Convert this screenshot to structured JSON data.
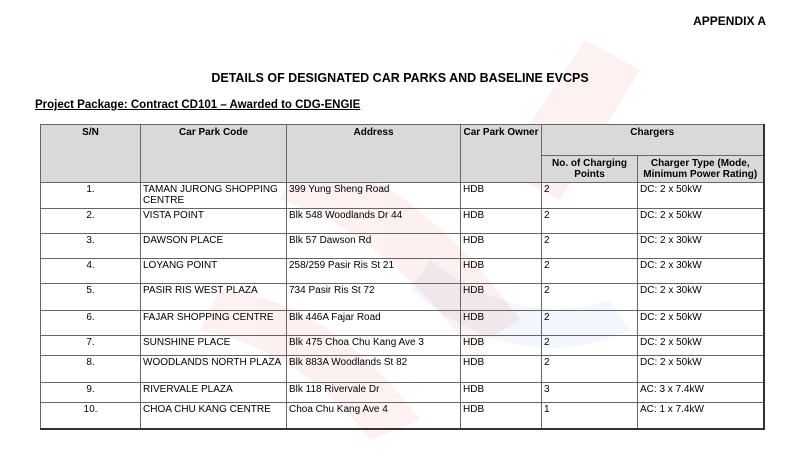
{
  "appendix": "APPENDIX A",
  "title": "DETAILS OF DESIGNATED CAR PARKS AND BASELINE EVCPS",
  "package": "Project Package: Contract CD101 – Awarded to CDG-ENGIE",
  "headers": {
    "sn": "S/N",
    "code": "Car Park Code",
    "address": "Address",
    "owner": "Car Park Owner",
    "chargers": "Chargers",
    "num": "No. of Charging Points",
    "type": "Charger Type (Mode, Minimum Power Rating)"
  },
  "rows": [
    {
      "sn": "1.",
      "code": "TAMAN JURONG SHOPPING CENTRE",
      "address": "399 Yung Sheng Road",
      "owner": "HDB",
      "num": "2",
      "type": "DC: 2 x 50kW"
    },
    {
      "sn": "2.",
      "code": "VISTA POINT",
      "address": "Blk 548 Woodlands Dr 44",
      "owner": "HDB",
      "num": "2",
      "type": "DC: 2 x 50kW"
    },
    {
      "sn": "3.",
      "code": "DAWSON PLACE",
      "address": "Blk 57 Dawson Rd",
      "owner": "HDB",
      "num": "2",
      "type": "DC: 2 x 30kW"
    },
    {
      "sn": "4.",
      "code": "LOYANG POINT",
      "address": "258/259 Pasir Ris St 21",
      "owner": "HDB",
      "num": "2",
      "type": "DC: 2 x 30kW"
    },
    {
      "sn": "5.",
      "code": "PASIR RIS WEST PLAZA",
      "address": "734 Pasir Ris St 72",
      "owner": "HDB",
      "num": "2",
      "type": "DC: 2 x 30kW"
    },
    {
      "sn": "6.",
      "code": "FAJAR SHOPPING CENTRE",
      "address": "Blk 446A Fajar Road",
      "owner": "HDB",
      "num": "2",
      "type": "DC: 2 x 50kW"
    },
    {
      "sn": "7.",
      "code": "SUNSHINE PLACE",
      "address": "Blk 475 Choa Chu Kang Ave 3",
      "owner": "HDB",
      "num": "2",
      "type": "DC: 2 x 50kW"
    },
    {
      "sn": "8.",
      "code": "WOODLANDS NORTH PLAZA",
      "address": "Blk 883A Woodlands St 82",
      "owner": "HDB",
      "num": "2",
      "type": "DC: 2 x 50kW"
    },
    {
      "sn": "9.",
      "code": "RIVERVALE PLAZA",
      "address": "Blk 118 Rivervale Dr",
      "owner": "HDB",
      "num": "3",
      "type": "AC: 3 x 7.4kW"
    },
    {
      "sn": "10.",
      "code": "CHOA CHU KANG CENTRE",
      "address": "Choa Chu Kang Ave 4",
      "owner": "HDB",
      "num": "1",
      "type": "AC: 1 x 7.4kW"
    }
  ]
}
